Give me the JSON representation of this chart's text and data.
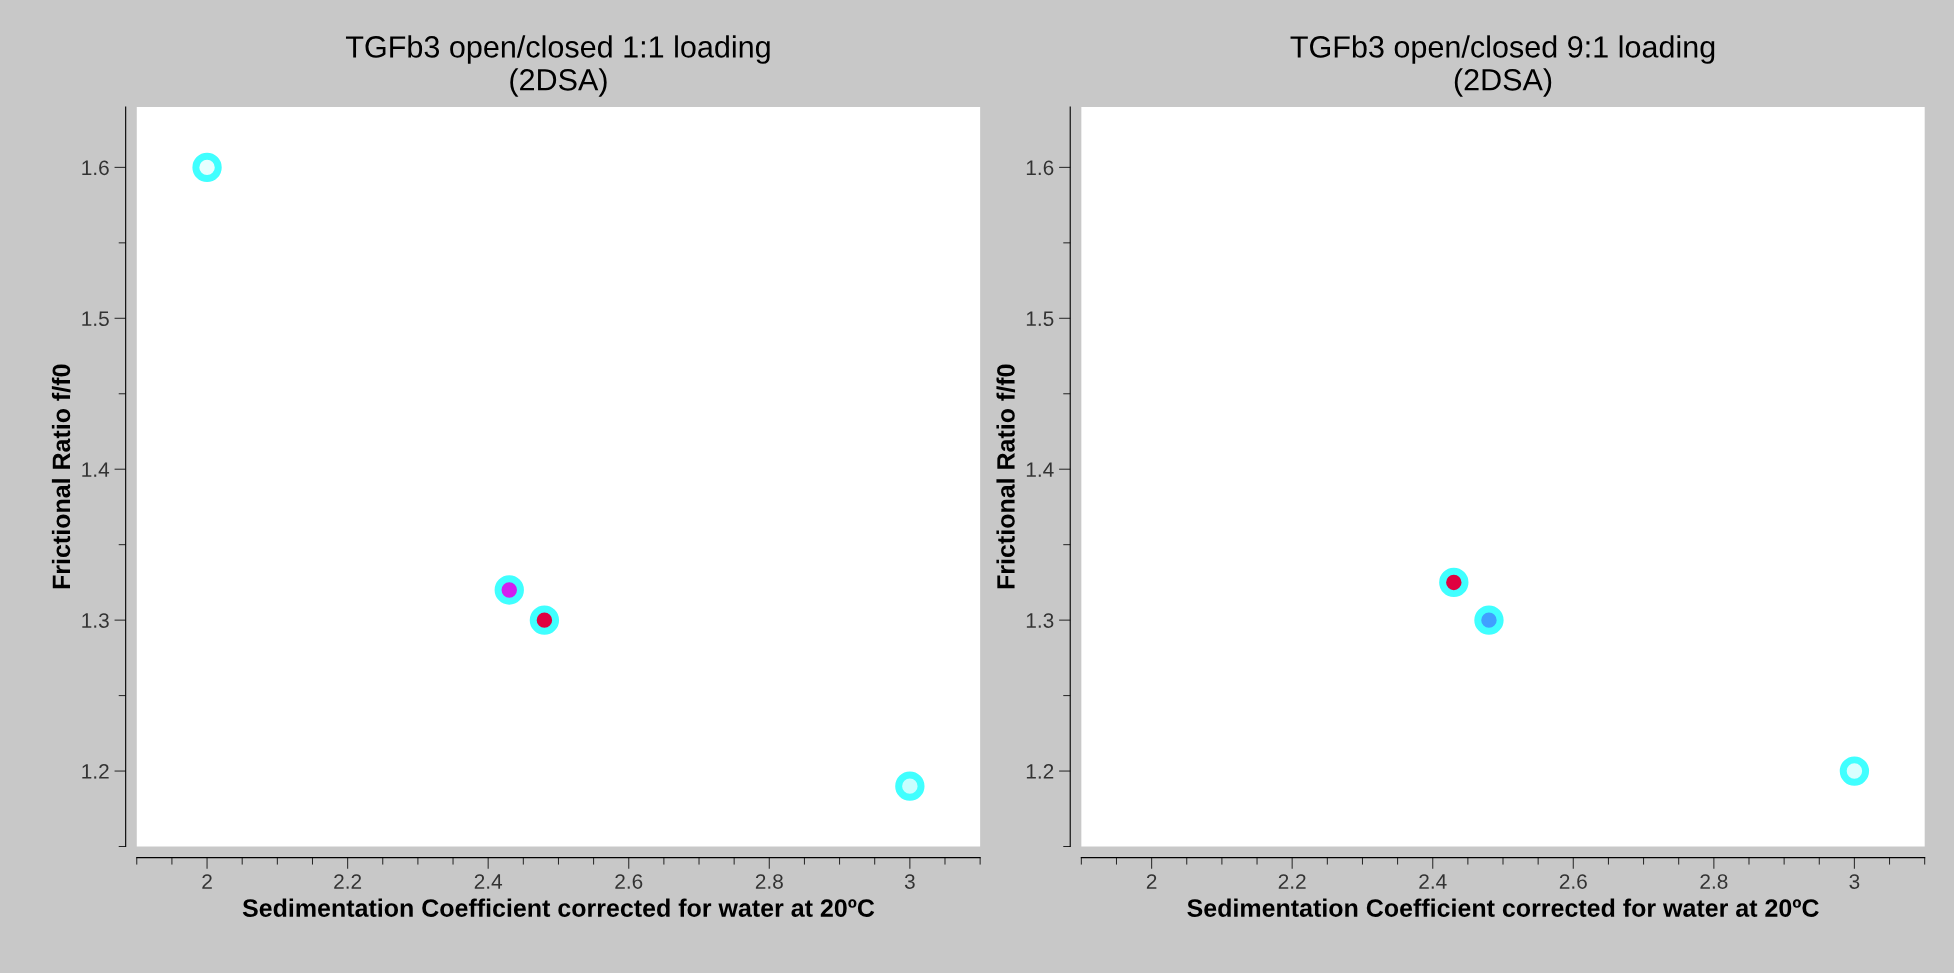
{
  "chart_data": [
    {
      "type": "scatter",
      "title": "TGFb3 open/closed 1:1 loading\n(2DSA)",
      "xlabel": "Sedimentation Coefficient corrected for water at 20ºC",
      "ylabel": "Frictional Ratio f/f0",
      "x": [
        2.0,
        2.43,
        2.48,
        3.0
      ],
      "values": [
        1.6,
        1.32,
        1.3,
        1.19
      ],
      "colors": [
        "#e8ffff",
        "#d020f0",
        "#e00040",
        "#c8ffff"
      ],
      "xlim": [
        1.9,
        3.1
      ],
      "ylim": [
        1.15,
        1.64
      ],
      "xticks": [
        2,
        2.2,
        2.4,
        2.6,
        2.8,
        3
      ],
      "yticks": [
        1.2,
        1.3,
        1.4,
        1.5,
        1.6
      ],
      "grid": false,
      "marker": "circle"
    },
    {
      "type": "scatter",
      "title": "TGFb3 open/closed 9:1 loading\n(2DSA)",
      "xlabel": "Sedimentation Coefficient corrected for water at 20ºC",
      "ylabel": "Frictional Ratio f/f0",
      "x": [
        2.43,
        2.48,
        3.0
      ],
      "values": [
        1.325,
        1.3,
        1.2
      ],
      "colors": [
        "#e00040",
        "#40a0ff",
        "#d8ffff"
      ],
      "xlim": [
        1.9,
        3.1
      ],
      "ylim": [
        1.15,
        1.64
      ],
      "xticks": [
        2,
        2.2,
        2.4,
        2.6,
        2.8,
        3
      ],
      "yticks": [
        1.2,
        1.3,
        1.4,
        1.5,
        1.6
      ],
      "grid": false,
      "marker": "circle"
    }
  ]
}
